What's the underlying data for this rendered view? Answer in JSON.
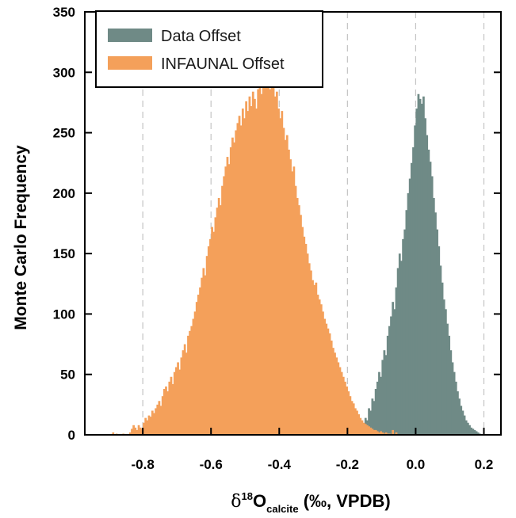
{
  "chart_data": {
    "type": "bar",
    "title": "",
    "ylabel": "Monte Carlo Frequency",
    "xlabel": {
      "prefix": "δ",
      "superscript": "18",
      "main": "O",
      "subscript": "calcite",
      "suffix": " (‰, VPDB)"
    },
    "xlim": [
      -0.97,
      0.25
    ],
    "ylim": [
      0,
      350
    ],
    "xticks": [
      -0.8,
      -0.6,
      -0.4,
      -0.2,
      0.0,
      0.2
    ],
    "xtick_labels": [
      "-0.8",
      "-0.6",
      "-0.4",
      "-0.2",
      "0.0",
      "0.2"
    ],
    "yticks": [
      0,
      50,
      100,
      150,
      200,
      250,
      300,
      350
    ],
    "ytick_labels": [
      "0",
      "50",
      "100",
      "150",
      "200",
      "250",
      "300",
      "350"
    ],
    "gridlines_x": [
      -0.8,
      -0.6,
      -0.4,
      -0.2,
      0.0,
      0.2
    ],
    "legend_position": "top-left",
    "bin_width": 0.005,
    "series": [
      {
        "name": "Data Offset",
        "color": "#6f8a86",
        "bins": [
          [
            -0.16,
            4
          ],
          [
            -0.155,
            8
          ],
          [
            -0.15,
            14
          ],
          [
            -0.145,
            12
          ],
          [
            -0.14,
            22
          ],
          [
            -0.135,
            20
          ],
          [
            -0.13,
            30
          ],
          [
            -0.125,
            28
          ],
          [
            -0.12,
            38
          ],
          [
            -0.115,
            44
          ],
          [
            -0.11,
            52
          ],
          [
            -0.105,
            48
          ],
          [
            -0.1,
            62
          ],
          [
            -0.095,
            70
          ],
          [
            -0.09,
            66
          ],
          [
            -0.085,
            82
          ],
          [
            -0.08,
            90
          ],
          [
            -0.075,
            98
          ],
          [
            -0.07,
            110
          ],
          [
            -0.065,
            104
          ],
          [
            -0.06,
            122
          ],
          [
            -0.055,
            138
          ],
          [
            -0.05,
            150
          ],
          [
            -0.045,
            144
          ],
          [
            -0.04,
            162
          ],
          [
            -0.035,
            170
          ],
          [
            -0.03,
            186
          ],
          [
            -0.025,
            200
          ],
          [
            -0.02,
            212
          ],
          [
            -0.015,
            225
          ],
          [
            -0.01,
            238
          ],
          [
            -0.005,
            256
          ],
          [
            0.0,
            270
          ],
          [
            0.005,
            282
          ],
          [
            0.01,
            278
          ],
          [
            0.015,
            274
          ],
          [
            0.02,
            280
          ],
          [
            0.025,
            262
          ],
          [
            0.03,
            248
          ],
          [
            0.035,
            236
          ],
          [
            0.04,
            226
          ],
          [
            0.045,
            214
          ],
          [
            0.05,
            196
          ],
          [
            0.055,
            184
          ],
          [
            0.06,
            170
          ],
          [
            0.065,
            156
          ],
          [
            0.07,
            140
          ],
          [
            0.075,
            126
          ],
          [
            0.08,
            112
          ],
          [
            0.085,
            104
          ],
          [
            0.09,
            92
          ],
          [
            0.095,
            82
          ],
          [
            0.1,
            70
          ],
          [
            0.105,
            60
          ],
          [
            0.11,
            52
          ],
          [
            0.115,
            44
          ],
          [
            0.12,
            36
          ],
          [
            0.125,
            30
          ],
          [
            0.13,
            24
          ],
          [
            0.135,
            20
          ],
          [
            0.14,
            16
          ],
          [
            0.145,
            12
          ],
          [
            0.15,
            10
          ],
          [
            0.155,
            8
          ],
          [
            0.16,
            6
          ],
          [
            0.165,
            5
          ],
          [
            0.17,
            4
          ],
          [
            0.175,
            3
          ],
          [
            0.18,
            2
          ],
          [
            0.185,
            1
          ]
        ]
      },
      {
        "name": "INFAUNAL Offset",
        "color": "#f4a05a",
        "bins": [
          [
            -0.89,
            2
          ],
          [
            -0.88,
            1
          ],
          [
            -0.87,
            0
          ],
          [
            -0.86,
            1
          ],
          [
            -0.85,
            0
          ],
          [
            -0.84,
            2
          ],
          [
            -0.835,
            5
          ],
          [
            -0.83,
            8
          ],
          [
            -0.825,
            6
          ],
          [
            -0.82,
            4
          ],
          [
            -0.815,
            8
          ],
          [
            -0.81,
            6
          ],
          [
            -0.805,
            5
          ],
          [
            -0.8,
            10
          ],
          [
            -0.795,
            14
          ],
          [
            -0.79,
            12
          ],
          [
            -0.785,
            16
          ],
          [
            -0.78,
            15
          ],
          [
            -0.775,
            20
          ],
          [
            -0.77,
            18
          ],
          [
            -0.765,
            22
          ],
          [
            -0.76,
            25
          ],
          [
            -0.755,
            28
          ],
          [
            -0.75,
            24
          ],
          [
            -0.745,
            32
          ],
          [
            -0.74,
            38
          ],
          [
            -0.735,
            40
          ],
          [
            -0.73,
            36
          ],
          [
            -0.725,
            44
          ],
          [
            -0.72,
            48
          ],
          [
            -0.715,
            42
          ],
          [
            -0.71,
            52
          ],
          [
            -0.705,
            56
          ],
          [
            -0.7,
            60
          ],
          [
            -0.695,
            54
          ],
          [
            -0.69,
            64
          ],
          [
            -0.685,
            70
          ],
          [
            -0.68,
            75
          ],
          [
            -0.675,
            68
          ],
          [
            -0.67,
            82
          ],
          [
            -0.665,
            86
          ],
          [
            -0.66,
            90
          ],
          [
            -0.655,
            96
          ],
          [
            -0.65,
            102
          ],
          [
            -0.645,
            110
          ],
          [
            -0.64,
            116
          ],
          [
            -0.635,
            122
          ],
          [
            -0.63,
            130
          ],
          [
            -0.625,
            138
          ],
          [
            -0.62,
            132
          ],
          [
            -0.615,
            148
          ],
          [
            -0.61,
            156
          ],
          [
            -0.605,
            162
          ],
          [
            -0.6,
            172
          ],
          [
            -0.595,
            168
          ],
          [
            -0.59,
            180
          ],
          [
            -0.585,
            188
          ],
          [
            -0.58,
            196
          ],
          [
            -0.575,
            190
          ],
          [
            -0.57,
            206
          ],
          [
            -0.565,
            214
          ],
          [
            -0.56,
            222
          ],
          [
            -0.555,
            230
          ],
          [
            -0.55,
            224
          ],
          [
            -0.545,
            238
          ],
          [
            -0.54,
            246
          ],
          [
            -0.535,
            242
          ],
          [
            -0.53,
            252
          ],
          [
            -0.525,
            258
          ],
          [
            -0.52,
            264
          ],
          [
            -0.515,
            256
          ],
          [
            -0.51,
            270
          ],
          [
            -0.505,
            262
          ],
          [
            -0.5,
            276
          ],
          [
            -0.495,
            268
          ],
          [
            -0.49,
            280
          ],
          [
            -0.485,
            272
          ],
          [
            -0.48,
            284
          ],
          [
            -0.475,
            278
          ],
          [
            -0.47,
            270
          ],
          [
            -0.465,
            286
          ],
          [
            -0.46,
            290
          ],
          [
            -0.455,
            282
          ],
          [
            -0.45,
            296
          ],
          [
            -0.445,
            288
          ],
          [
            -0.44,
            301
          ],
          [
            -0.435,
            292
          ],
          [
            -0.43,
            286
          ],
          [
            -0.425,
            298
          ],
          [
            -0.42,
            290
          ],
          [
            -0.415,
            280
          ],
          [
            -0.41,
            284
          ],
          [
            -0.405,
            270
          ],
          [
            -0.4,
            262
          ],
          [
            -0.395,
            268
          ],
          [
            -0.39,
            254
          ],
          [
            -0.385,
            244
          ],
          [
            -0.38,
            248
          ],
          [
            -0.375,
            236
          ],
          [
            -0.37,
            228
          ],
          [
            -0.365,
            218
          ],
          [
            -0.36,
            222
          ],
          [
            -0.355,
            206
          ],
          [
            -0.35,
            196
          ],
          [
            -0.345,
            190
          ],
          [
            -0.34,
            182
          ],
          [
            -0.335,
            172
          ],
          [
            -0.33,
            164
          ],
          [
            -0.325,
            158
          ],
          [
            -0.32,
            150
          ],
          [
            -0.315,
            142
          ],
          [
            -0.31,
            136
          ],
          [
            -0.305,
            128
          ],
          [
            -0.3,
            124
          ],
          [
            -0.295,
            126
          ],
          [
            -0.29,
            116
          ],
          [
            -0.285,
            112
          ],
          [
            -0.28,
            108
          ],
          [
            -0.275,
            102
          ],
          [
            -0.27,
            96
          ],
          [
            -0.265,
            92
          ],
          [
            -0.26,
            88
          ],
          [
            -0.255,
            84
          ],
          [
            -0.25,
            78
          ],
          [
            -0.245,
            72
          ],
          [
            -0.24,
            68
          ],
          [
            -0.235,
            64
          ],
          [
            -0.23,
            60
          ],
          [
            -0.225,
            56
          ],
          [
            -0.22,
            52
          ],
          [
            -0.215,
            48
          ],
          [
            -0.21,
            44
          ],
          [
            -0.205,
            40
          ],
          [
            -0.2,
            36
          ],
          [
            -0.195,
            32
          ],
          [
            -0.19,
            28
          ],
          [
            -0.185,
            26
          ],
          [
            -0.18,
            22
          ],
          [
            -0.175,
            20
          ],
          [
            -0.17,
            17
          ],
          [
            -0.165,
            14
          ],
          [
            -0.16,
            12
          ],
          [
            -0.155,
            10
          ],
          [
            -0.15,
            9
          ],
          [
            -0.145,
            8
          ],
          [
            -0.14,
            7
          ],
          [
            -0.135,
            6
          ],
          [
            -0.13,
            5
          ],
          [
            -0.125,
            4
          ],
          [
            -0.12,
            4
          ],
          [
            -0.115,
            3
          ],
          [
            -0.11,
            2
          ],
          [
            -0.105,
            3
          ],
          [
            -0.1,
            2
          ],
          [
            -0.095,
            1
          ],
          [
            -0.09,
            2
          ],
          [
            -0.085,
            1
          ],
          [
            -0.08,
            1
          ],
          [
            -0.07,
            4
          ],
          [
            -0.06,
            2
          ]
        ]
      }
    ]
  }
}
